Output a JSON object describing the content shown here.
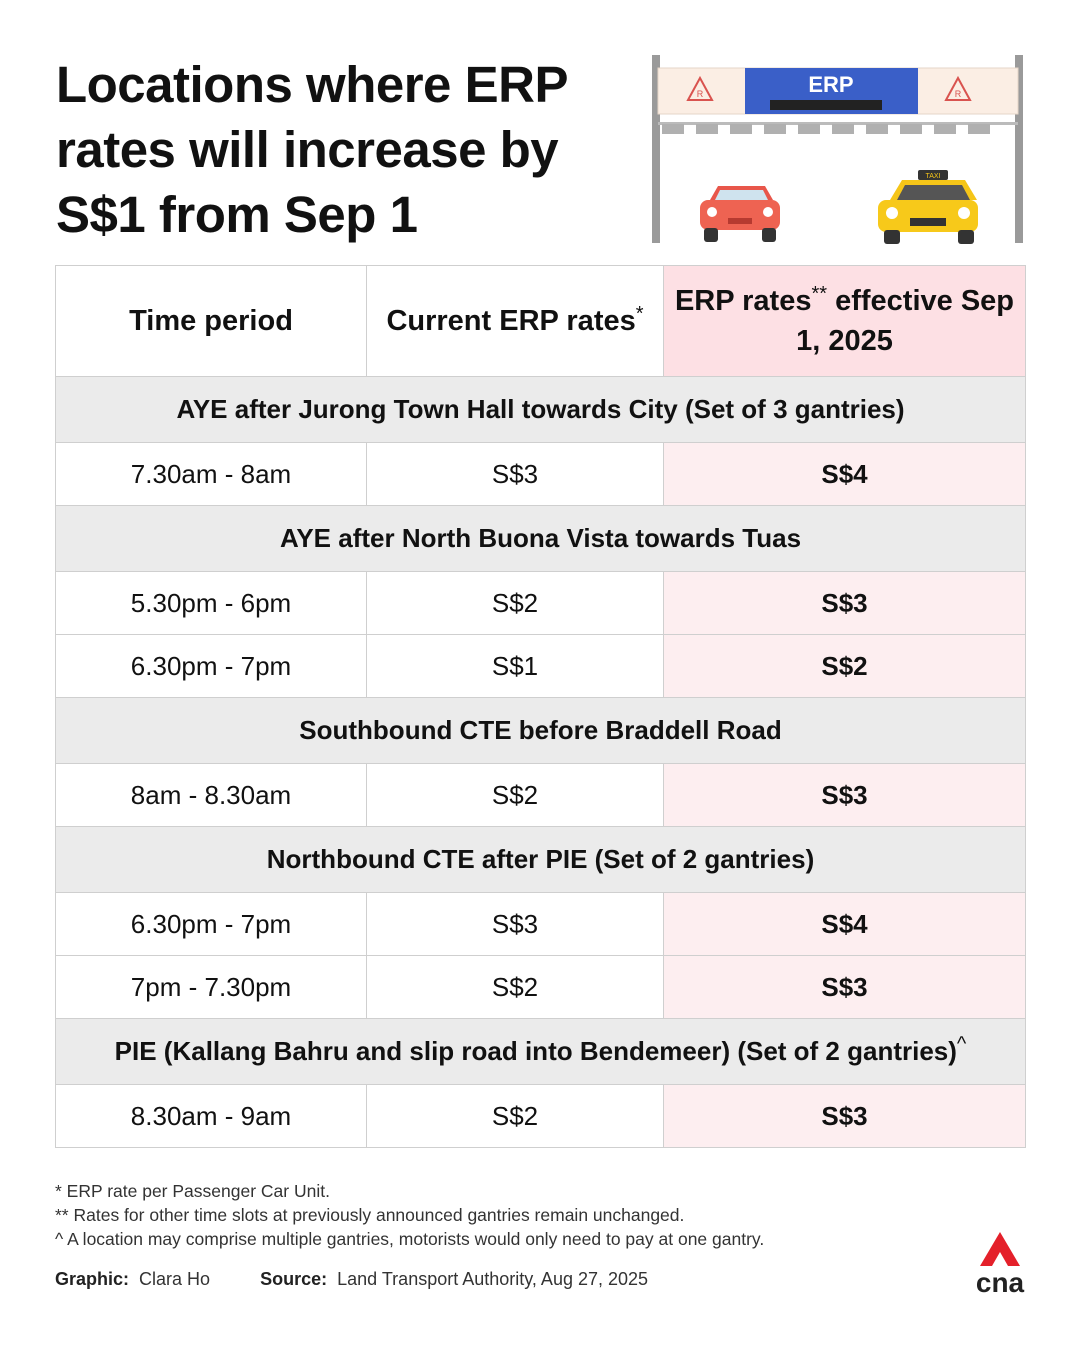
{
  "header": {
    "title": "Locations where ERP rates will increase by S$1 from Sep 1"
  },
  "illustration": {
    "sign_text": "ERP",
    "taxi_text": "TAXI",
    "sign_mark": "R"
  },
  "table": {
    "headers": [
      {
        "text": "Time period"
      },
      {
        "text": "Current ERP rates",
        "sup": "*"
      },
      {
        "text": "ERP rates",
        "sup": "**",
        "text_after": "effective Sep 1, 2025"
      }
    ],
    "sections": [
      {
        "location": "AYE after Jurong Town Hall towards City (Set of 3 gantries)",
        "rows": [
          [
            "7.30am - 8am",
            "S$3",
            "S$4"
          ]
        ]
      },
      {
        "location": "AYE after North Buona Vista towards Tuas",
        "rows": [
          [
            "5.30pm - 6pm",
            "S$2",
            "S$3"
          ],
          [
            "6.30pm - 7pm",
            "S$1",
            "S$2"
          ]
        ]
      },
      {
        "location": "Southbound CTE before Braddell Road",
        "rows": [
          [
            "8am - 8.30am",
            "S$2",
            "S$3"
          ]
        ]
      },
      {
        "location": "Northbound CTE after PIE (Set of 2 gantries)",
        "rows": [
          [
            "6.30pm - 7pm",
            "S$3",
            "S$4"
          ],
          [
            "7pm - 7.30pm",
            "S$2",
            "S$3"
          ]
        ]
      },
      {
        "location": "PIE (Kallang Bahru and slip road into Bendemeer) (Set of 2 gantries)",
        "sup": "^",
        "rows": [
          [
            "8.30am - 9am",
            "S$2",
            "S$3"
          ]
        ]
      }
    ]
  },
  "footnotes": [
    "* ERP rate per Passenger Car Unit.",
    "** Rates for other time slots at previously announced gantries remain unchanged.",
    "^ A location may comprise multiple gantries, motorists would only need to pay at one gantry."
  ],
  "credits": {
    "graphic_label": "Graphic:",
    "graphic": "Clara Ho",
    "source_label": "Source:",
    "source": "Land Transport Authority, Aug 27, 2025"
  },
  "logo": {
    "text": "cna"
  }
}
